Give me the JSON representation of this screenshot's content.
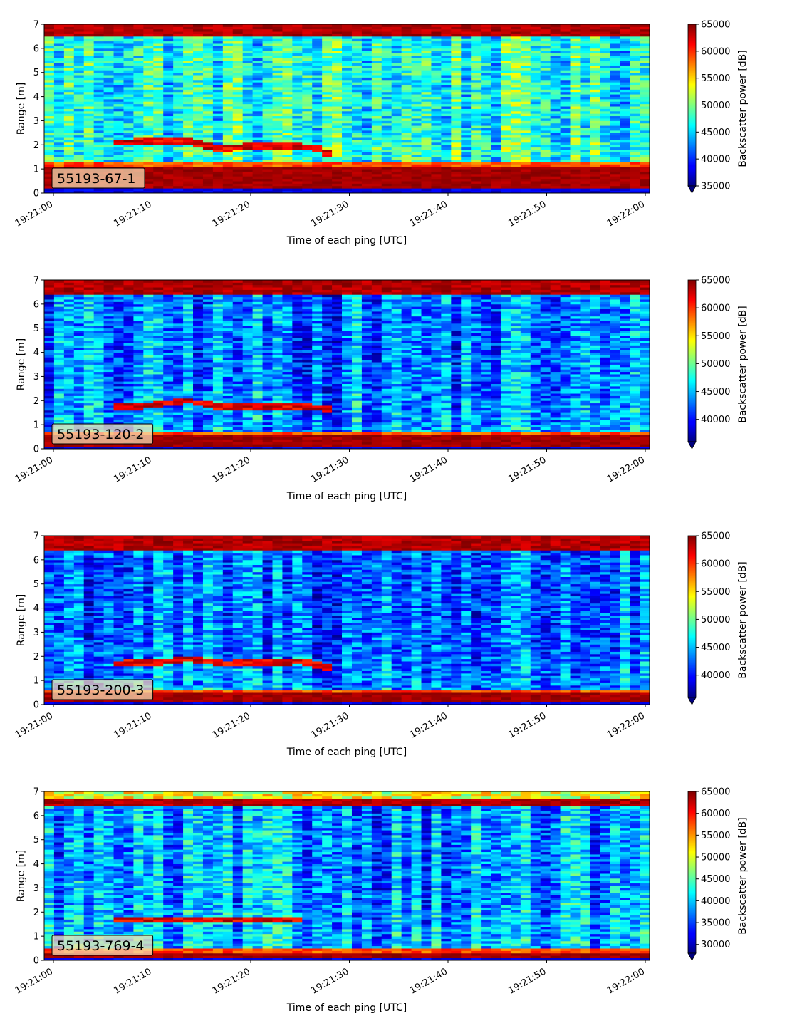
{
  "chart_data": [
    {
      "type": "heatmap",
      "label": "55193-67-1",
      "xlabel": "Time of each ping [UTC]",
      "ylabel": "Range [m]",
      "colorbar_label": "Backscatter power [dB]",
      "colormap": "jet",
      "x_ticks": [
        "19:21:00",
        "19:21:10",
        "19:21:20",
        "19:21:30",
        "19:21:40",
        "19:21:50",
        "19:22:00"
      ],
      "y_ticks": [
        0,
        1,
        2,
        3,
        4,
        5,
        6,
        7
      ],
      "ylim": [
        0,
        7
      ],
      "clim": [
        35000,
        65000
      ],
      "colorbar_ticks": [
        35000,
        40000,
        45000,
        50000,
        55000,
        60000,
        65000
      ],
      "features": {
        "near_band_range_m": [
          0.2,
          1.15
        ],
        "far_band_range_m": [
          6.5,
          7.0
        ],
        "target_track": [
          [
            5.5,
            2.1
          ],
          [
            13.5,
            2.15
          ],
          [
            16,
            1.85
          ],
          [
            20,
            1.95
          ],
          [
            26,
            1.9
          ],
          [
            27.5,
            1.6
          ]
        ],
        "background_level": 47000
      }
    },
    {
      "type": "heatmap",
      "label": "55193-120-2",
      "xlabel": "Time of each ping [UTC]",
      "ylabel": "Range [m]",
      "colorbar_label": "Backscatter power [dB]",
      "colormap": "jet",
      "x_ticks": [
        "19:21:00",
        "19:21:10",
        "19:21:20",
        "19:21:30",
        "19:21:40",
        "19:21:50",
        "19:22:00"
      ],
      "y_ticks": [
        0,
        1,
        2,
        3,
        4,
        5,
        6,
        7
      ],
      "ylim": [
        0,
        7
      ],
      "clim": [
        36000,
        65000
      ],
      "colorbar_ticks": [
        40000,
        45000,
        50000,
        55000,
        60000,
        65000
      ],
      "features": {
        "near_band_range_m": [
          0.1,
          0.55
        ],
        "far_band_range_m": [
          6.4,
          7.0
        ],
        "target_track": [
          [
            5.5,
            1.75
          ],
          [
            9.5,
            1.8
          ],
          [
            13,
            2.0
          ],
          [
            16,
            1.75
          ],
          [
            20,
            1.75
          ],
          [
            25,
            1.75
          ],
          [
            27.5,
            1.65
          ]
        ],
        "background_level": 43000
      }
    },
    {
      "type": "heatmap",
      "label": "55193-200-3",
      "xlabel": "Time of each ping [UTC]",
      "ylabel": "Range [m]",
      "colorbar_label": "Backscatter power [dB]",
      "colormap": "jet",
      "x_ticks": [
        "19:21:00",
        "19:21:10",
        "19:21:20",
        "19:21:30",
        "19:21:40",
        "19:21:50",
        "19:22:00"
      ],
      "y_ticks": [
        0,
        1,
        2,
        3,
        4,
        5,
        6,
        7
      ],
      "ylim": [
        0,
        7
      ],
      "clim": [
        36000,
        65000
      ],
      "colorbar_ticks": [
        40000,
        45000,
        50000,
        55000,
        60000,
        65000
      ],
      "features": {
        "near_band_range_m": [
          0.1,
          0.45
        ],
        "far_band_range_m": [
          6.45,
          7.0
        ],
        "target_track": [
          [
            5.5,
            1.7
          ],
          [
            10,
            1.75
          ],
          [
            13,
            1.9
          ],
          [
            17,
            1.7
          ],
          [
            20,
            1.75
          ],
          [
            25,
            1.8
          ],
          [
            27,
            1.6
          ],
          [
            28,
            1.2
          ]
        ],
        "background_level": 42500
      }
    },
    {
      "type": "heatmap",
      "label": "55193-769-4",
      "xlabel": "Time of each ping [UTC]",
      "ylabel": "Range [m]",
      "colorbar_label": "Backscatter power [dB]",
      "colormap": "jet",
      "x_ticks": [
        "19:21:00",
        "19:21:10",
        "19:21:20",
        "19:21:30",
        "19:21:40",
        "19:21:50",
        "19:22:00"
      ],
      "y_ticks": [
        0,
        1,
        2,
        3,
        4,
        5,
        6,
        7
      ],
      "ylim": [
        0,
        7
      ],
      "clim": [
        28000,
        65000
      ],
      "colorbar_ticks": [
        30000,
        35000,
        40000,
        45000,
        50000,
        55000,
        60000,
        65000
      ],
      "features": {
        "near_band_range_m": [
          0.15,
          0.35
        ],
        "far_band_range_m": [
          6.4,
          6.65
        ],
        "target_track": [
          [
            6,
            1.7
          ],
          [
            9.5,
            1.7
          ],
          [
            16,
            1.7
          ],
          [
            24.5,
            1.7
          ]
        ],
        "background_level": 38000
      }
    }
  ]
}
